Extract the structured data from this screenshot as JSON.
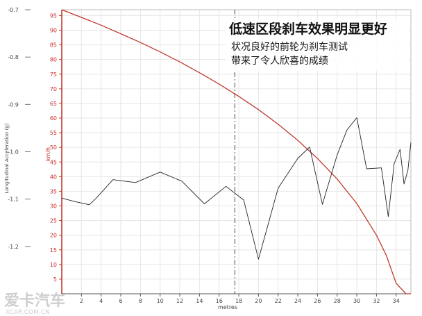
{
  "headline": {
    "title": "低速区段刹车效果明显更好",
    "line1": "状况良好的前轮为刹车测试",
    "line2": "带来了令人欣喜的成绩"
  },
  "watermark": {
    "logo_text": "爱卡汽车",
    "url": "XCAR.COM.CN"
  },
  "chart_data": {
    "type": "line",
    "xlabel": "metres",
    "ylabel_left": "Longitudinal Acceleration (g)",
    "ylabel_right": "km/h",
    "xlim": [
      0,
      35.5
    ],
    "ylim_left": [
      -1.3,
      -0.7
    ],
    "ylim_right": [
      0,
      97
    ],
    "x_ticks": [
      2,
      4,
      6,
      8,
      10,
      12,
      14,
      16,
      18,
      20,
      22,
      24,
      26,
      28,
      30,
      32,
      34
    ],
    "y_left_ticks": [
      -0.7,
      -0.8,
      -0.9,
      -1.0,
      -1.1,
      -1.2
    ],
    "y_right_ticks": [
      95,
      90,
      85,
      80,
      75,
      70,
      65,
      60,
      55,
      50,
      45,
      40,
      35,
      30,
      25,
      20,
      15,
      10,
      5
    ],
    "marker_x": 17.6,
    "colors": {
      "speed": "#c0392b",
      "accel": "#222222",
      "marker": "#444444",
      "grid": "#e6e6e6"
    },
    "series": [
      {
        "axis": "right",
        "x": [
          0,
          2,
          4,
          6,
          8,
          10,
          12,
          14,
          16,
          18,
          20,
          22,
          24,
          26,
          28,
          30,
          32,
          33,
          34,
          35,
          35.5
        ],
        "values": [
          97,
          94.4,
          91.7,
          88.8,
          85.8,
          82.6,
          79.2,
          75.5,
          71.6,
          67.4,
          62.9,
          57.9,
          52.4,
          46.2,
          39.2,
          30.8,
          20.0,
          13.1,
          3.6,
          0,
          0
        ]
      },
      {
        "axis": "left",
        "x": [
          0,
          1.5,
          2.8,
          3.5,
          5.2,
          7.5,
          10,
          12.2,
          14.5,
          16.7,
          18.5,
          20,
          22,
          24,
          25.2,
          26.5,
          28,
          29,
          30,
          31,
          32.5,
          33.2,
          33.8,
          34.4,
          34.8,
          35.2,
          35.5
        ],
        "values": [
          -1.098,
          -1.106,
          -1.112,
          -1.098,
          -1.059,
          -1.065,
          -1.043,
          -1.062,
          -1.11,
          -1.073,
          -1.102,
          -1.227,
          -1.077,
          -1.014,
          -0.99,
          -1.111,
          -1.007,
          -0.954,
          -0.928,
          -1.036,
          -1.034,
          -1.137,
          -1.025,
          -0.995,
          -1.068,
          -1.039,
          -0.98
        ]
      }
    ]
  }
}
